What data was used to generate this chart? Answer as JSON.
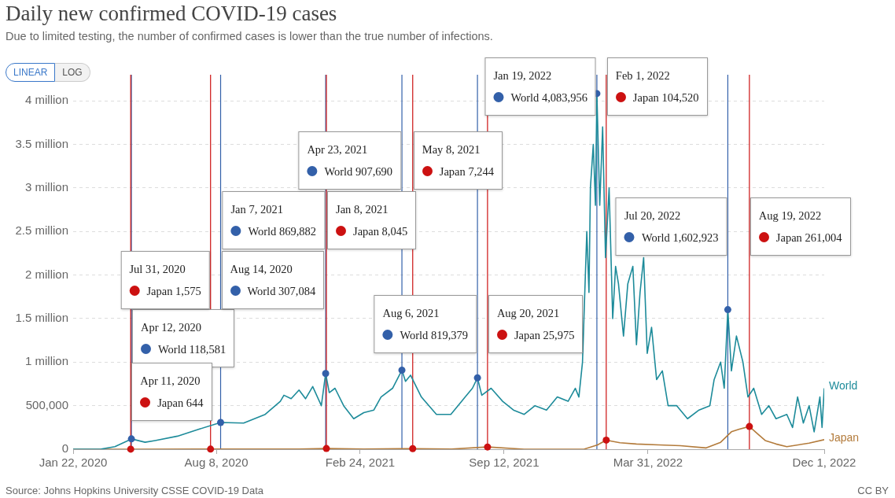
{
  "chart_data": {
    "type": "line",
    "title": "Daily new confirmed COVID-19 cases",
    "subtitle": "Due to limited testing, the number of confirmed cases is lower than the true number of infections.",
    "xlim": [
      "2020-01-22",
      "2022-12-01"
    ],
    "xticks": [
      {
        "value": "2020-01-22",
        "label": "Jan 22, 2020"
      },
      {
        "value": "2020-08-08",
        "label": "Aug 8, 2020"
      },
      {
        "value": "2021-02-24",
        "label": "Feb 24, 2021"
      },
      {
        "value": "2021-09-12",
        "label": "Sep 12, 2021"
      },
      {
        "value": "2022-03-31",
        "label": "Mar 31, 2022"
      },
      {
        "value": "2022-12-01",
        "label": "Dec 1, 2022"
      }
    ],
    "ylim": [
      0,
      4300000
    ],
    "yticks": [
      0,
      {
        "value": 500000,
        "label": "500,000"
      },
      {
        "value": 1000000,
        "label": "1 million"
      },
      {
        "value": 1500000,
        "label": "1.5 million"
      },
      {
        "value": 2000000,
        "label": "2 million"
      },
      {
        "value": 2500000,
        "label": "2.5 million"
      },
      {
        "value": 3000000,
        "label": "3 million"
      },
      {
        "value": 3500000,
        "label": "3.5 million"
      },
      {
        "value": 4000000,
        "label": "4 million"
      }
    ],
    "grid": "y",
    "legend": false,
    "marker": "none",
    "line_style": "solid",
    "series": [
      {
        "name": "World",
        "color": "#1d8b9a",
        "x": [
          "2020-01-22",
          "2020-03-01",
          "2020-03-20",
          "2020-04-05",
          "2020-04-12",
          "2020-05-01",
          "2020-05-15",
          "2020-06-15",
          "2020-07-15",
          "2020-08-14",
          "2020-09-15",
          "2020-10-15",
          "2020-11-05",
          "2020-11-10",
          "2020-11-20",
          "2020-12-01",
          "2020-12-10",
          "2020-12-20",
          "2021-01-01",
          "2021-01-07",
          "2021-01-12",
          "2021-01-20",
          "2021-02-01",
          "2021-02-15",
          "2021-03-01",
          "2021-03-15",
          "2021-03-25",
          "2021-04-10",
          "2021-04-23",
          "2021-04-28",
          "2021-05-05",
          "2021-05-20",
          "2021-06-10",
          "2021-06-30",
          "2021-07-20",
          "2021-07-30",
          "2021-08-06",
          "2021-08-12",
          "2021-08-25",
          "2021-09-10",
          "2021-09-25",
          "2021-10-10",
          "2021-10-25",
          "2021-11-10",
          "2021-11-25",
          "2021-12-10",
          "2021-12-20",
          "2021-12-25",
          "2021-12-30",
          "2022-01-05",
          "2022-01-08",
          "2022-01-10",
          "2022-01-14",
          "2022-01-17",
          "2022-01-19",
          "2022-01-23",
          "2022-01-27",
          "2022-01-31",
          "2022-02-05",
          "2022-02-10",
          "2022-02-14",
          "2022-02-18",
          "2022-02-25",
          "2022-03-03",
          "2022-03-10",
          "2022-03-15",
          "2022-03-20",
          "2022-03-25",
          "2022-03-30",
          "2022-04-05",
          "2022-04-12",
          "2022-04-20",
          "2022-04-28",
          "2022-05-10",
          "2022-05-25",
          "2022-06-10",
          "2022-06-25",
          "2022-07-01",
          "2022-07-10",
          "2022-07-15",
          "2022-07-20",
          "2022-07-25",
          "2022-08-01",
          "2022-08-10",
          "2022-08-17",
          "2022-08-25",
          "2022-09-05",
          "2022-09-15",
          "2022-09-25",
          "2022-10-10",
          "2022-10-18",
          "2022-10-25",
          "2022-11-02",
          "2022-11-10",
          "2022-11-17",
          "2022-11-25",
          "2022-11-28",
          "2022-12-01"
        ],
        "values": [
          0,
          2000,
          30000,
          90000,
          118581,
          80000,
          100000,
          150000,
          230000,
          307084,
          300000,
          400000,
          550000,
          620000,
          580000,
          680000,
          580000,
          720000,
          500000,
          869882,
          650000,
          700000,
          500000,
          350000,
          420000,
          450000,
          600000,
          700000,
          907690,
          780000,
          850000,
          600000,
          400000,
          400000,
          600000,
          700000,
          819379,
          620000,
          700000,
          550000,
          450000,
          400000,
          500000,
          450000,
          600000,
          550000,
          700000,
          600000,
          1000000,
          2500000,
          1800000,
          3000000,
          3500000,
          2800000,
          4083956,
          2800000,
          3700000,
          2200000,
          3000000,
          1500000,
          2100000,
          1900000,
          1300000,
          1900000,
          2100000,
          1200000,
          1800000,
          2200000,
          1100000,
          1400000,
          800000,
          900000,
          500000,
          500000,
          350000,
          450000,
          500000,
          800000,
          1000000,
          700000,
          1602923,
          900000,
          1300000,
          1000000,
          600000,
          700000,
          400000,
          500000,
          350000,
          400000,
          250000,
          600000,
          300000,
          500000,
          200000,
          600000,
          250000,
          700000
        ]
      },
      {
        "name": "Japan",
        "color": "#b37b3b",
        "x": [
          "2020-01-22",
          "2020-04-11",
          "2020-07-31",
          "2020-12-01",
          "2021-01-08",
          "2021-03-01",
          "2021-05-08",
          "2021-07-01",
          "2021-08-20",
          "2021-10-10",
          "2022-01-01",
          "2022-01-20",
          "2022-02-01",
          "2022-02-20",
          "2022-03-15",
          "2022-04-15",
          "2022-05-15",
          "2022-06-20",
          "2022-07-10",
          "2022-07-25",
          "2022-08-05",
          "2022-08-19",
          "2022-08-30",
          "2022-09-10",
          "2022-09-25",
          "2022-10-10",
          "2022-11-10",
          "2022-12-01"
        ],
        "values": [
          0,
          644,
          1575,
          2500,
          8045,
          1000,
          7244,
          2000,
          25975,
          500,
          500,
          50000,
          104520,
          75000,
          60000,
          50000,
          40000,
          15000,
          80000,
          200000,
          230000,
          261004,
          180000,
          100000,
          60000,
          30000,
          70000,
          110000
        ]
      }
    ],
    "ref_lines": [
      {
        "axis": "x",
        "value": "2020-04-12",
        "color": "#3360a9"
      },
      {
        "axis": "x",
        "value": "2020-04-11",
        "color": "#cc1111"
      },
      {
        "axis": "x",
        "value": "2020-07-31",
        "color": "#cc1111"
      },
      {
        "axis": "x",
        "value": "2020-08-14",
        "color": "#3360a9"
      },
      {
        "axis": "x",
        "value": "2021-01-07",
        "color": "#3360a9"
      },
      {
        "axis": "x",
        "value": "2021-01-08",
        "color": "#cc1111"
      },
      {
        "axis": "x",
        "value": "2021-04-23",
        "color": "#3360a9"
      },
      {
        "axis": "x",
        "value": "2021-05-08",
        "color": "#cc1111"
      },
      {
        "axis": "x",
        "value": "2021-08-06",
        "color": "#3360a9"
      },
      {
        "axis": "x",
        "value": "2021-08-20",
        "color": "#cc1111"
      },
      {
        "axis": "x",
        "value": "2022-01-19",
        "color": "#3360a9"
      },
      {
        "axis": "x",
        "value": "2022-02-01",
        "color": "#cc1111"
      },
      {
        "axis": "x",
        "value": "2022-07-20",
        "color": "#3360a9"
      },
      {
        "axis": "x",
        "value": "2022-08-19",
        "color": "#cc1111"
      }
    ],
    "annotations": [
      "Apr 12, 2020\nWorld 118,581",
      "Apr 11, 2020\nJapan 644",
      "Jul 31, 2020\nJapan 1,575",
      "Aug 14, 2020\nWorld 307,084",
      "Jan 7, 2021\nWorld 869,882",
      "Jan 8, 2021\nJapan 8,045",
      "Apr 23, 2021\nWorld 907,690",
      "May 8, 2021\nJapan 7,244",
      "Aug 6, 2021\nWorld 819,379",
      "Aug 20, 2021\nJapan 25,975",
      "Jan 19, 2022\nWorld 4,083,956",
      "Feb 1, 2022\nJapan 104,520",
      "Jul 20, 2022\nWorld 1,602,923",
      "Aug 19, 2022\nJapan 261,004",
      "LINEAR",
      "LOG",
      "Source: Johns Hopkins University CSSE COVID-19 Data",
      "CC BY"
    ]
  }
}
